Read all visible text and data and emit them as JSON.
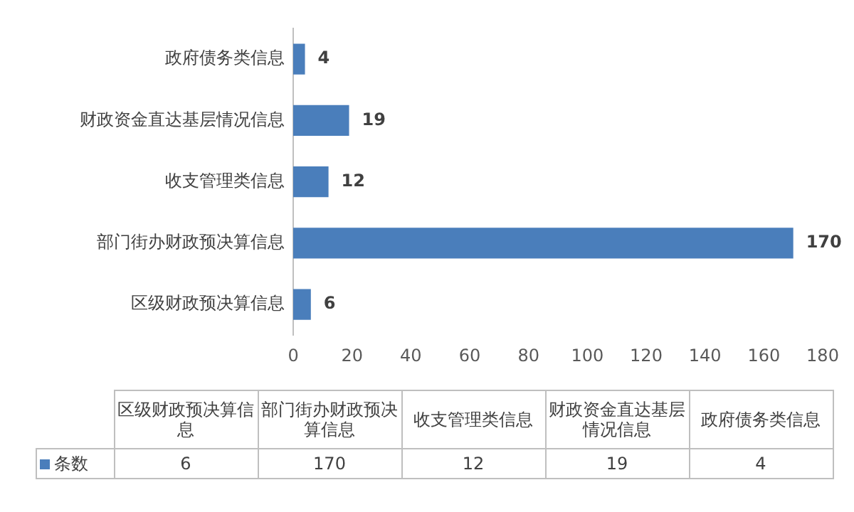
{
  "chart_data": [
    {
      "type": "bar",
      "orientation": "horizontal",
      "categories": [
        "政府债务类信息",
        "财政资金直达基层情况信息",
        "收支管理类信息",
        "部门街办财政预决算信息",
        "区级财政预决算信息"
      ],
      "series": [
        {
          "color": "#4a7ebb",
          "values": [
            4,
            19,
            12,
            170,
            6
          ]
        }
      ],
      "xlim": [
        0,
        180
      ],
      "xticks": [
        0,
        20,
        40,
        60,
        80,
        100,
        120,
        140,
        160,
        180
      ],
      "grid": false,
      "data_labels": true
    },
    {
      "type": "other",
      "categories": [
        "区级财政预决算信息",
        "部门街办财政预决算信息",
        "收支管理类信息",
        "财政资金直达基层情况信息",
        "政府债务类信息"
      ],
      "series": [
        {
          "name": "条数",
          "color": "#4a7ebb",
          "values": [
            6,
            170,
            12,
            19,
            4
          ]
        }
      ],
      "data_labels": true
    }
  ]
}
